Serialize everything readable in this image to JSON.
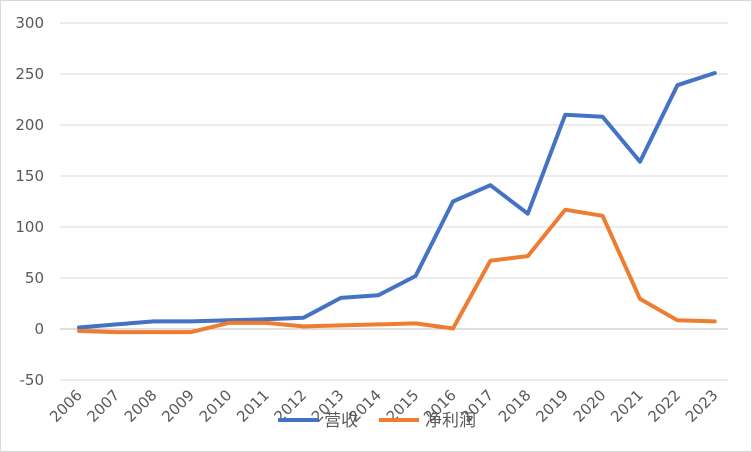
{
  "chart_data": {
    "type": "line",
    "title": "",
    "xlabel": "",
    "ylabel": "",
    "ylim": [
      -50,
      300
    ],
    "yticks": [
      -50,
      0,
      50,
      100,
      150,
      200,
      250,
      300
    ],
    "grid": true,
    "legend_position": "bottom",
    "categories": [
      "2006",
      "2007",
      "2008",
      "2009",
      "2010",
      "2011",
      "2012",
      "2013",
      "2014",
      "2015",
      "2016",
      "2017",
      "2018",
      "2019",
      "2020",
      "2021",
      "2022",
      "2023"
    ],
    "series": [
      {
        "name": "营收",
        "color": "#4472c4",
        "values": [
          1.5,
          4.5,
          7.5,
          7.5,
          8.5,
          9.5,
          11,
          30.5,
          33,
          52,
          125,
          141,
          113,
          210,
          208,
          164,
          239,
          251
        ]
      },
      {
        "name": "净利润",
        "color": "#ed7d31",
        "values": [
          -2,
          -3,
          -3,
          -3,
          6,
          6,
          2.5,
          3.5,
          4.5,
          5.5,
          0.5,
          67,
          71.5,
          117,
          111,
          29.5,
          8.5,
          7.5
        ]
      }
    ]
  }
}
